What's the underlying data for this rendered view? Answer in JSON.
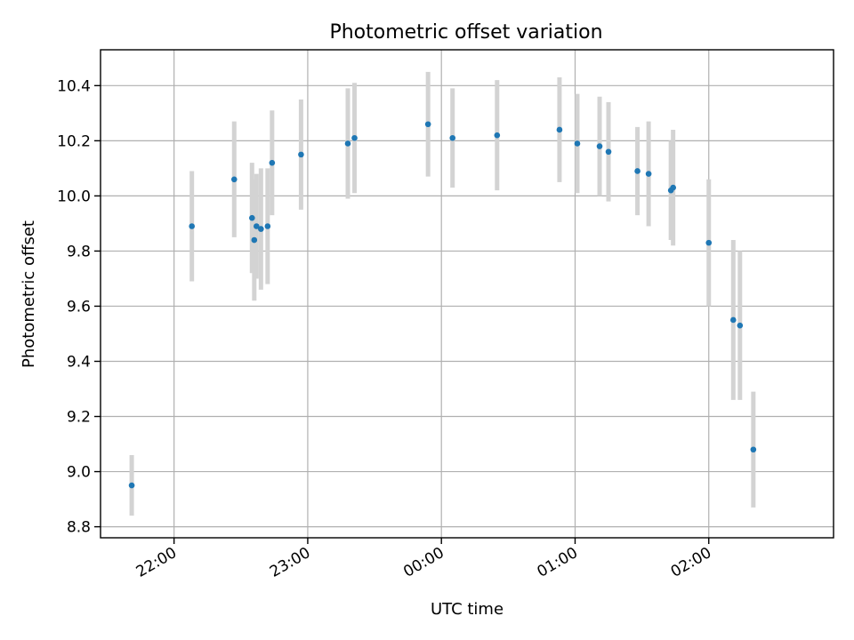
{
  "chart_data": {
    "type": "scatter",
    "title": "Photometric offset variation",
    "xlabel": "UTC time",
    "ylabel": "Photometric offset",
    "grid": true,
    "xlim": [
      "21:27",
      "02:56"
    ],
    "ylim": [
      8.76,
      10.53
    ],
    "x_ticks": [
      "22:00",
      "23:00",
      "00:00",
      "01:00",
      "02:00"
    ],
    "y_ticks": [
      "8.8",
      "9.0",
      "9.2",
      "9.4",
      "9.6",
      "9.8",
      "10.0",
      "10.2",
      "10.4"
    ],
    "point_color": "#1f77b4",
    "errorbar_color": "#d3d3d3",
    "series": [
      {
        "points": [
          {
            "x": "21:41",
            "y": 8.95,
            "err": 0.11
          },
          {
            "x": "22:08",
            "y": 9.89,
            "err": 0.2
          },
          {
            "x": "22:27",
            "y": 10.06,
            "err": 0.21
          },
          {
            "x": "22:35",
            "y": 9.92,
            "err": 0.2
          },
          {
            "x": "22:36",
            "y": 9.84,
            "err": 0.22
          },
          {
            "x": "22:37",
            "y": 9.89,
            "err": 0.19
          },
          {
            "x": "22:39",
            "y": 9.88,
            "err": 0.22
          },
          {
            "x": "22:42",
            "y": 9.89,
            "err": 0.21
          },
          {
            "x": "22:44",
            "y": 10.12,
            "err": 0.19
          },
          {
            "x": "22:57",
            "y": 10.15,
            "err": 0.2
          },
          {
            "x": "23:18",
            "y": 10.19,
            "err": 0.2
          },
          {
            "x": "23:21",
            "y": 10.21,
            "err": 0.2
          },
          {
            "x": "23:54",
            "y": 10.26,
            "err": 0.19
          },
          {
            "x": "00:05",
            "y": 10.21,
            "err": 0.18
          },
          {
            "x": "00:25",
            "y": 10.22,
            "err": 0.2
          },
          {
            "x": "00:53",
            "y": 10.24,
            "err": 0.19
          },
          {
            "x": "01:01",
            "y": 10.19,
            "err": 0.18
          },
          {
            "x": "01:11",
            "y": 10.18,
            "err": 0.18
          },
          {
            "x": "01:15",
            "y": 10.16,
            "err": 0.18
          },
          {
            "x": "01:28",
            "y": 10.09,
            "err": 0.16
          },
          {
            "x": "01:33",
            "y": 10.08,
            "err": 0.19
          },
          {
            "x": "01:43",
            "y": 10.02,
            "err": 0.18
          },
          {
            "x": "01:44",
            "y": 10.03,
            "err": 0.21
          },
          {
            "x": "02:00",
            "y": 9.83,
            "err": 0.23
          },
          {
            "x": "02:11",
            "y": 9.55,
            "err": 0.29
          },
          {
            "x": "02:14",
            "y": 9.53,
            "err": 0.27
          },
          {
            "x": "02:20",
            "y": 9.08,
            "err": 0.21
          }
        ]
      }
    ]
  }
}
